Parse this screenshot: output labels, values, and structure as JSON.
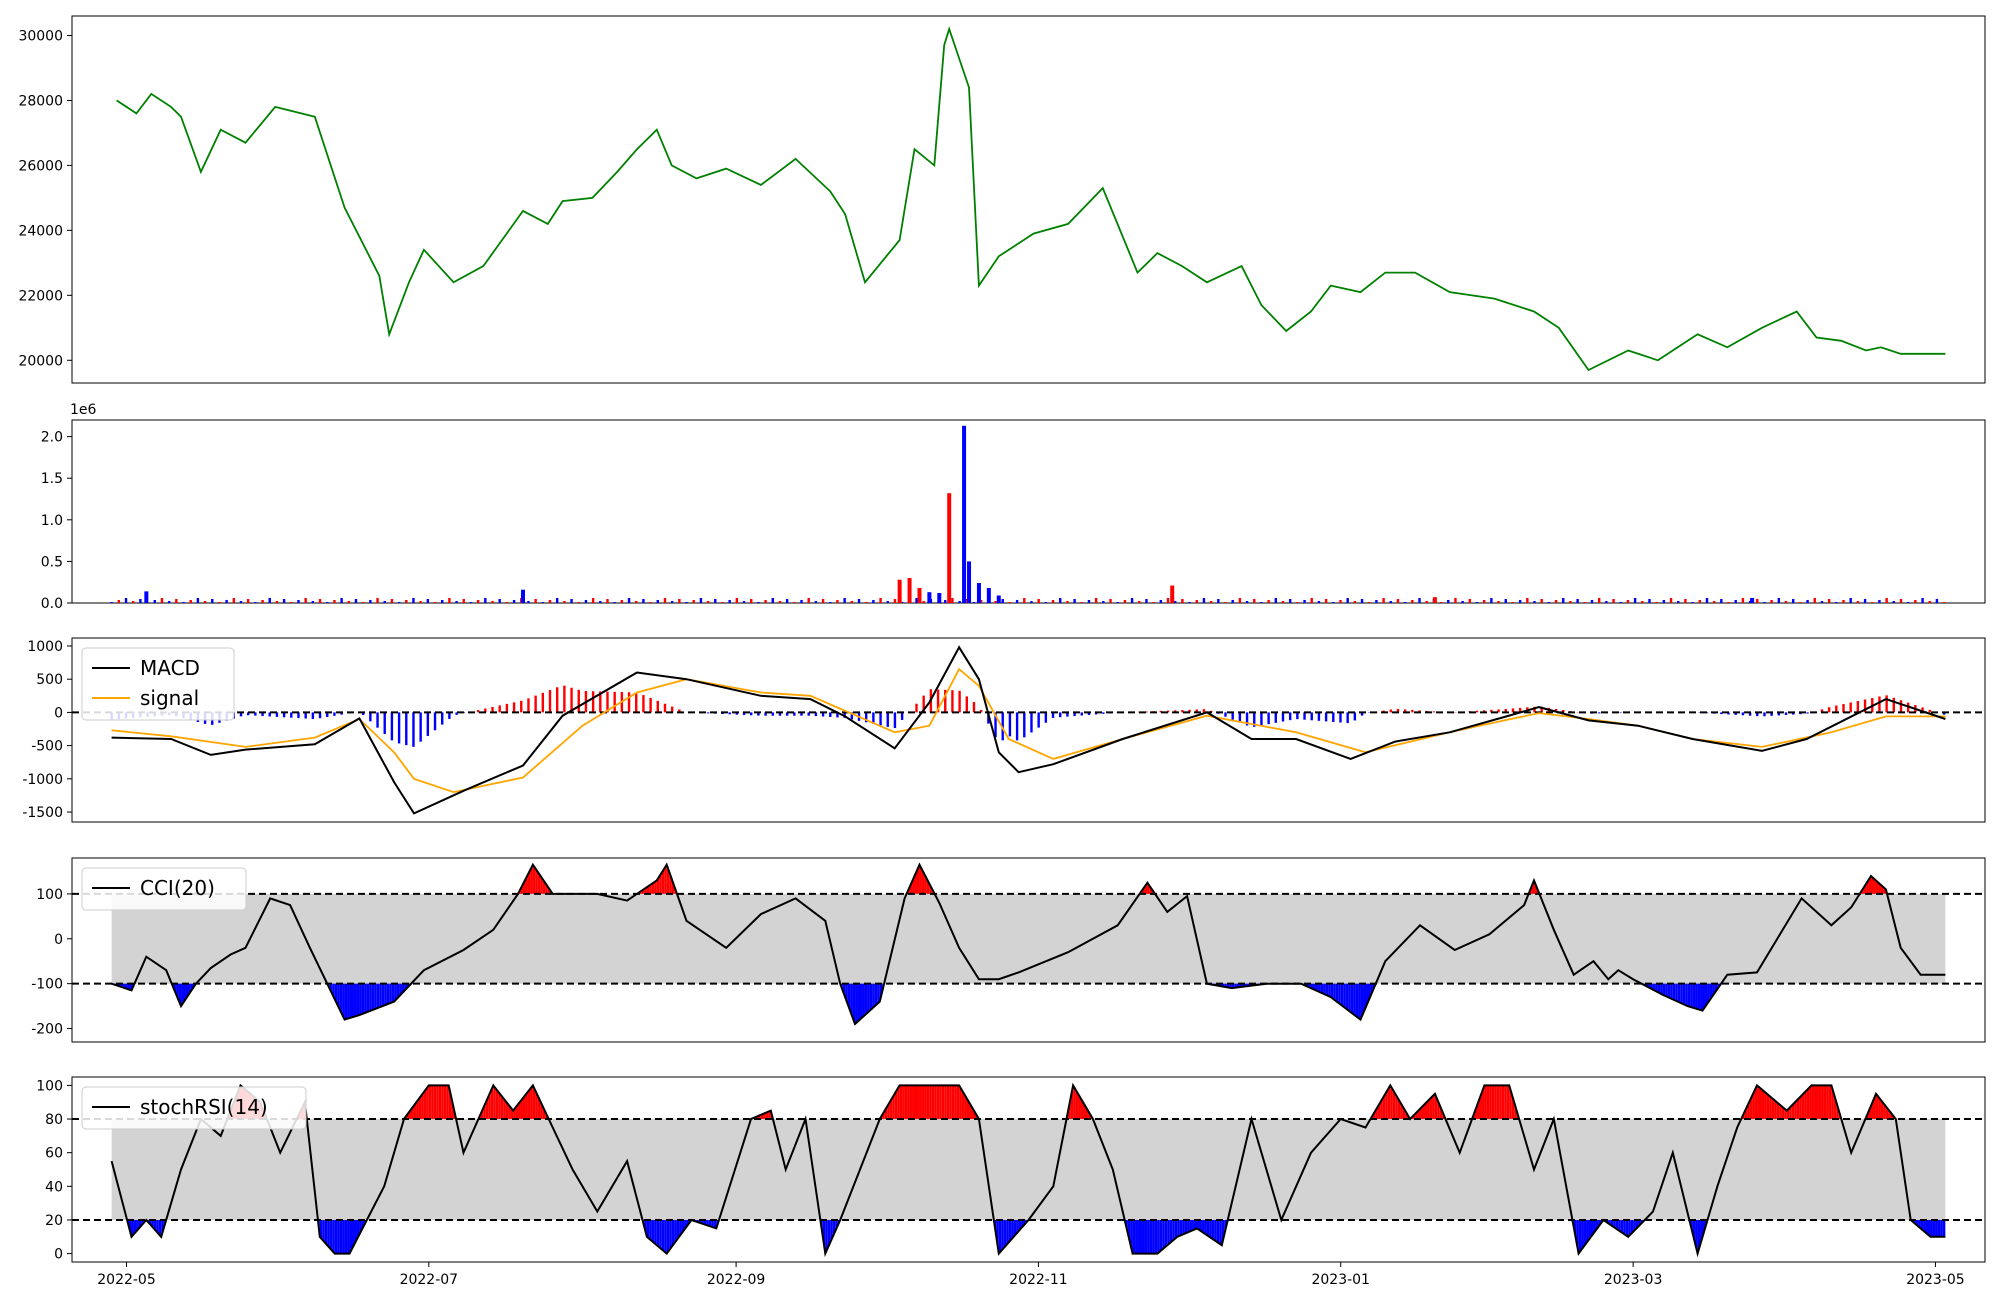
{
  "chart_data": [
    {
      "type": "line",
      "panel": "price",
      "series": [
        {
          "color": "#008000",
          "dates": [
            "2022-04-29",
            "2022-05-03",
            "2022-05-06",
            "2022-05-10",
            "2022-05-12",
            "2022-05-16",
            "2022-05-20",
            "2022-05-25",
            "2022-05-31",
            "2022-06-08",
            "2022-06-14",
            "2022-06-21",
            "2022-06-23",
            "2022-06-27",
            "2022-06-30",
            "2022-07-06",
            "2022-07-12",
            "2022-07-20",
            "2022-07-25",
            "2022-07-28",
            "2022-08-03",
            "2022-08-08",
            "2022-08-12",
            "2022-08-16",
            "2022-08-19",
            "2022-08-24",
            "2022-08-30",
            "2022-09-06",
            "2022-09-13",
            "2022-09-20",
            "2022-09-23",
            "2022-09-27",
            "2022-10-04",
            "2022-10-07",
            "2022-10-11",
            "2022-10-13",
            "2022-10-14",
            "2022-10-18",
            "2022-10-20",
            "2022-10-24",
            "2022-10-31",
            "2022-11-07",
            "2022-11-14",
            "2022-11-21",
            "2022-11-25",
            "2022-11-30",
            "2022-12-05",
            "2022-12-12",
            "2022-12-16",
            "2022-12-21",
            "2022-12-26",
            "2022-12-30",
            "2023-01-05",
            "2023-01-10",
            "2023-01-16",
            "2023-01-23",
            "2023-02-01",
            "2023-02-09",
            "2023-02-14",
            "2023-02-20",
            "2023-02-28",
            "2023-03-06",
            "2023-03-10",
            "2023-03-14",
            "2023-03-20",
            "2023-03-27",
            "2023-04-03",
            "2023-04-07",
            "2023-04-12",
            "2023-04-17",
            "2023-04-20",
            "2023-04-24",
            "2023-05-03"
          ],
          "values": [
            28000,
            27600,
            28200,
            27800,
            27500,
            25800,
            27100,
            26700,
            27800,
            27500,
            24700,
            22600,
            20800,
            22400,
            23400,
            22400,
            22900,
            24600,
            24200,
            24900,
            25000,
            25800,
            26500,
            27100,
            26000,
            25600,
            25900,
            25400,
            26200,
            25200,
            24500,
            22400,
            23700,
            26500,
            26000,
            29700,
            30200,
            28400,
            22300,
            23200,
            23900,
            24200,
            25300,
            22700,
            23300,
            22900,
            22400,
            22900,
            21700,
            20900,
            21500,
            22300,
            22100,
            22700,
            22700,
            22100,
            21900,
            21500,
            21000,
            19700,
            20300,
            20000,
            20400,
            20800,
            20400,
            21000,
            21500,
            20700,
            20600,
            20300,
            20400,
            20200,
            20200
          ]
        }
      ],
      "ylim": [
        19300,
        30600
      ],
      "yticks": [
        20000,
        22000,
        24000,
        26000,
        28000,
        30000
      ]
    },
    {
      "type": "bar",
      "panel": "volume",
      "offset_text": "1e6",
      "ylim": [
        0,
        2.2
      ],
      "yticks": [
        "0.0",
        "0.5",
        "1.0",
        "1.5",
        "2.0"
      ],
      "bars": [
        {
          "date": "2022-05-05",
          "value": 0.14,
          "color": "#0000ff"
        },
        {
          "date": "2022-07-20",
          "value": 0.16,
          "color": "#0000ff"
        },
        {
          "date": "2022-10-04",
          "value": 0.28,
          "color": "#ff0000"
        },
        {
          "date": "2022-10-06",
          "value": 0.3,
          "color": "#ff0000"
        },
        {
          "date": "2022-10-08",
          "value": 0.18,
          "color": "#ff0000"
        },
        {
          "date": "2022-10-10",
          "value": 0.13,
          "color": "#0000ff"
        },
        {
          "date": "2022-10-12",
          "value": 0.12,
          "color": "#0000ff"
        },
        {
          "date": "2022-10-14",
          "value": 1.32,
          "color": "#ff0000"
        },
        {
          "date": "2022-10-17",
          "value": 2.13,
          "color": "#0000ff"
        },
        {
          "date": "2022-10-18",
          "value": 0.5,
          "color": "#0000ff"
        },
        {
          "date": "2022-10-20",
          "value": 0.24,
          "color": "#0000ff"
        },
        {
          "date": "2022-10-22",
          "value": 0.18,
          "color": "#0000ff"
        },
        {
          "date": "2022-10-24",
          "value": 0.09,
          "color": "#0000ff"
        },
        {
          "date": "2022-11-28",
          "value": 0.21,
          "color": "#ff0000"
        },
        {
          "date": "2023-01-20",
          "value": 0.07,
          "color": "#ff0000"
        },
        {
          "date": "2023-03-25",
          "value": 0.06,
          "color": "#0000ff"
        }
      ],
      "baseline_bars": {
        "from": "2022-04-28",
        "to": "2023-05-03",
        "value": 0.025,
        "colors": [
          "#0000ff",
          "#ff0000"
        ]
      }
    },
    {
      "type": "line",
      "panel": "macd",
      "legend": [
        "MACD",
        "signal"
      ],
      "ylim": [
        -1650,
        1120
      ],
      "yticks": [
        -1500,
        -1000,
        -500,
        0,
        500,
        1000
      ],
      "zero_line": 0,
      "series": [
        {
          "name": "MACD",
          "color": "#000000",
          "dates": [
            "2022-04-28",
            "2022-05-10",
            "2022-05-18",
            "2022-05-25",
            "2022-06-08",
            "2022-06-17",
            "2022-06-24",
            "2022-06-28",
            "2022-07-08",
            "2022-07-20",
            "2022-07-28",
            "2022-08-12",
            "2022-08-22",
            "2022-09-06",
            "2022-09-16",
            "2022-09-23",
            "2022-10-03",
            "2022-10-10",
            "2022-10-16",
            "2022-10-20",
            "2022-10-24",
            "2022-10-28",
            "2022-11-04",
            "2022-11-18",
            "2022-12-05",
            "2022-12-14",
            "2022-12-23",
            "2023-01-03",
            "2023-01-12",
            "2023-01-23",
            "2023-02-03",
            "2023-02-10",
            "2023-02-20",
            "2023-03-02",
            "2023-03-13",
            "2023-03-27",
            "2023-04-05",
            "2023-04-21",
            "2023-05-03"
          ],
          "values": [
            -380,
            -400,
            -640,
            -560,
            -480,
            -90,
            -1050,
            -1520,
            -1180,
            -800,
            -50,
            600,
            500,
            250,
            200,
            -60,
            -540,
            150,
            980,
            500,
            -600,
            -900,
            -780,
            -400,
            0,
            -400,
            -400,
            -700,
            -440,
            -300,
            -70,
            80,
            -120,
            -200,
            -400,
            -580,
            -400,
            200,
            -100
          ]
        },
        {
          "name": "signal",
          "color": "#ffa500",
          "dates": [
            "2022-04-28",
            "2022-05-10",
            "2022-05-25",
            "2022-06-08",
            "2022-06-17",
            "2022-06-24",
            "2022-06-28",
            "2022-07-06",
            "2022-07-20",
            "2022-08-01",
            "2022-08-12",
            "2022-08-22",
            "2022-09-06",
            "2022-09-16",
            "2022-10-03",
            "2022-10-10",
            "2022-10-16",
            "2022-10-20",
            "2022-10-26",
            "2022-11-04",
            "2022-11-18",
            "2022-12-05",
            "2022-12-23",
            "2023-01-06",
            "2023-01-23",
            "2023-02-03",
            "2023-02-10",
            "2023-02-20",
            "2023-03-02",
            "2023-03-13",
            "2023-03-27",
            "2023-04-10",
            "2023-04-21",
            "2023-05-03"
          ],
          "values": [
            -270,
            -360,
            -520,
            -380,
            -100,
            -600,
            -1000,
            -1200,
            -980,
            -200,
            300,
            500,
            300,
            250,
            -300,
            -200,
            650,
            400,
            -400,
            -700,
            -400,
            -50,
            -300,
            -600,
            -300,
            -120,
            -10,
            -100,
            -200,
            -400,
            -520,
            -300,
            -60,
            -60
          ]
        }
      ],
      "histogram": {
        "from": "2022-04-28",
        "to": "2023-05-03",
        "pos_color": "#ff0000",
        "neg_color": "#0000ff"
      }
    },
    {
      "type": "line",
      "panel": "cci",
      "legend": [
        "CCI(20)"
      ],
      "ylim": [
        -230,
        180
      ],
      "yticks": [
        -200,
        -100,
        0,
        100
      ],
      "thresholds": [
        -100,
        100
      ],
      "band_color": "#d3d3d3",
      "over_color": "#ff0000",
      "under_color": "#0000ff",
      "series": [
        {
          "name": "CCI(20)",
          "color": "#000000",
          "dates": [
            "2022-04-28",
            "2022-05-02",
            "2022-05-05",
            "2022-05-09",
            "2022-05-12",
            "2022-05-15",
            "2022-05-18",
            "2022-05-22",
            "2022-05-25",
            "2022-05-30",
            "2022-06-03",
            "2022-06-07",
            "2022-06-14",
            "2022-06-17",
            "2022-06-24",
            "2022-06-30",
            "2022-07-08",
            "2022-07-14",
            "2022-07-19",
            "2022-07-22",
            "2022-07-26",
            "2022-08-04",
            "2022-08-10",
            "2022-08-16",
            "2022-08-18",
            "2022-08-22",
            "2022-08-30",
            "2022-09-06",
            "2022-09-13",
            "2022-09-19",
            "2022-09-22",
            "2022-09-25",
            "2022-09-30",
            "2022-10-05",
            "2022-10-08",
            "2022-10-12",
            "2022-10-16",
            "2022-10-20",
            "2022-10-24",
            "2022-10-28",
            "2022-11-07",
            "2022-11-17",
            "2022-11-23",
            "2022-11-27",
            "2022-12-01",
            "2022-12-05",
            "2022-12-10",
            "2022-12-17",
            "2022-12-24",
            "2022-12-30",
            "2023-01-05",
            "2023-01-10",
            "2023-01-17",
            "2023-01-24",
            "2023-01-31",
            "2023-02-07",
            "2023-02-09",
            "2023-02-13",
            "2023-02-17",
            "2023-02-21",
            "2023-02-24",
            "2023-02-26",
            "2023-03-01",
            "2023-03-07",
            "2023-03-12",
            "2023-03-15",
            "2023-03-20",
            "2023-03-26",
            "2023-04-04",
            "2023-04-10",
            "2023-04-14",
            "2023-04-18",
            "2023-04-21",
            "2023-04-24",
            "2023-04-28",
            "2023-05-03"
          ],
          "values": [
            -100,
            -115,
            -40,
            -70,
            -150,
            -100,
            -65,
            -35,
            -20,
            90,
            75,
            -20,
            -180,
            -170,
            -140,
            -70,
            -25,
            20,
            100,
            165,
            100,
            100,
            85,
            130,
            165,
            40,
            -20,
            55,
            90,
            40,
            -100,
            -190,
            -140,
            90,
            165,
            80,
            -20,
            -90,
            -90,
            -75,
            -30,
            30,
            125,
            60,
            95,
            -100,
            -110,
            -100,
            -100,
            -130,
            -180,
            -50,
            30,
            -25,
            10,
            75,
            130,
            20,
            -80,
            -50,
            -90,
            -70,
            -90,
            -125,
            -150,
            -160,
            -80,
            -75,
            90,
            30,
            70,
            140,
            110,
            -20,
            -80,
            -80
          ]
        }
      ]
    },
    {
      "type": "line",
      "panel": "stochrsi",
      "legend": [
        "stochRSI(14)"
      ],
      "ylim": [
        -5,
        105
      ],
      "yticks": [
        0,
        20,
        40,
        60,
        80,
        100
      ],
      "thresholds": [
        20,
        80
      ],
      "band_color": "#d3d3d3",
      "over_color": "#ff0000",
      "under_color": "#0000ff",
      "series": [
        {
          "name": "stochRSI(14)",
          "color": "#000000",
          "dates": [
            "2022-04-28",
            "2022-05-02",
            "2022-05-05",
            "2022-05-08",
            "2022-05-12",
            "2022-05-16",
            "2022-05-20",
            "2022-05-24",
            "2022-05-28",
            "2022-06-01",
            "2022-06-06",
            "2022-06-09",
            "2022-06-12",
            "2022-06-15",
            "2022-06-22",
            "2022-06-26",
            "2022-07-01",
            "2022-07-05",
            "2022-07-08",
            "2022-07-14",
            "2022-07-18",
            "2022-07-22",
            "2022-07-26",
            "2022-07-30",
            "2022-08-04",
            "2022-08-10",
            "2022-08-14",
            "2022-08-18",
            "2022-08-23",
            "2022-08-28",
            "2022-09-04",
            "2022-09-08",
            "2022-09-11",
            "2022-09-15",
            "2022-09-19",
            "2022-09-22",
            "2022-09-26",
            "2022-09-30",
            "2022-10-04",
            "2022-10-08",
            "2022-10-12",
            "2022-10-16",
            "2022-10-20",
            "2022-10-24",
            "2022-10-30",
            "2022-11-04",
            "2022-11-08",
            "2022-11-12",
            "2022-11-16",
            "2022-11-20",
            "2022-11-25",
            "2022-11-29",
            "2022-12-03",
            "2022-12-08",
            "2022-12-14",
            "2022-12-20",
            "2022-12-26",
            "2023-01-01",
            "2023-01-06",
            "2023-01-11",
            "2023-01-15",
            "2023-01-20",
            "2023-01-25",
            "2023-01-30",
            "2023-02-04",
            "2023-02-09",
            "2023-02-13",
            "2023-02-18",
            "2023-02-23",
            "2023-02-28",
            "2023-03-05",
            "2023-03-09",
            "2023-03-14",
            "2023-03-18",
            "2023-03-22",
            "2023-03-26",
            "2023-04-01",
            "2023-04-06",
            "2023-04-10",
            "2023-04-14",
            "2023-04-19",
            "2023-04-23",
            "2023-04-26",
            "2023-04-30",
            "2023-05-03"
          ],
          "values": [
            55,
            10,
            20,
            10,
            50,
            80,
            70,
            100,
            90,
            60,
            90,
            10,
            0,
            0,
            40,
            80,
            100,
            100,
            60,
            100,
            85,
            100,
            75,
            50,
            25,
            55,
            10,
            0,
            20,
            15,
            80,
            85,
            50,
            80,
            0,
            20,
            50,
            80,
            100,
            100,
            100,
            100,
            80,
            0,
            20,
            40,
            100,
            80,
            50,
            0,
            0,
            10,
            15,
            5,
            80,
            20,
            60,
            80,
            75,
            100,
            80,
            95,
            60,
            100,
            100,
            50,
            80,
            0,
            20,
            10,
            25,
            60,
            0,
            40,
            75,
            100,
            85,
            100,
            100,
            60,
            95,
            80,
            20,
            10,
            10
          ]
        }
      ]
    }
  ],
  "x_axis": {
    "ticks": [
      "2022-05",
      "2022-07",
      "2022-09",
      "2022-11",
      "2023-01",
      "2023-03",
      "2023-05"
    ],
    "range": [
      "2022-04-20",
      "2023-05-11"
    ]
  }
}
